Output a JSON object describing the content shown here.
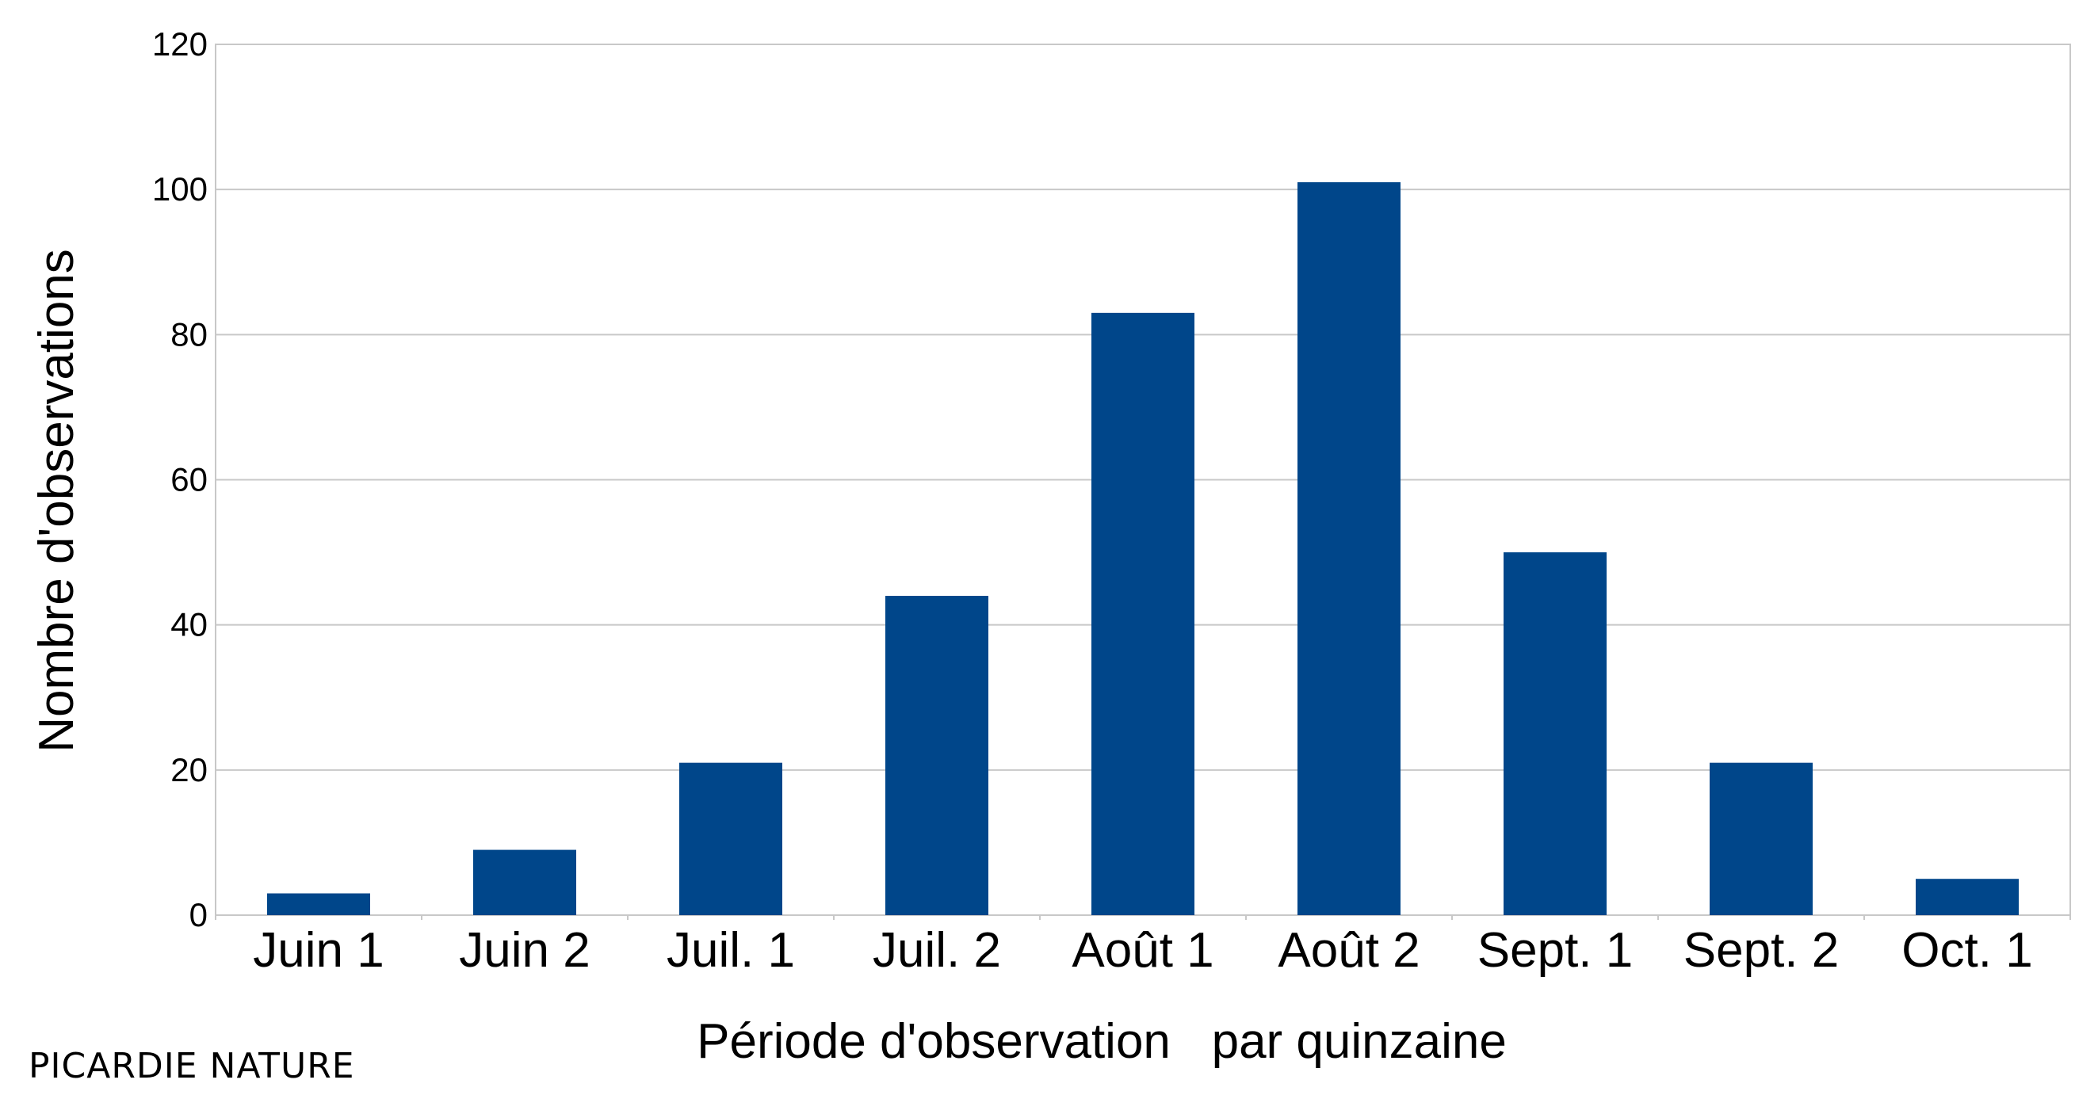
{
  "chart_data": {
    "type": "bar",
    "categories": [
      "Juin 1",
      "Juin 2",
      "Juil. 1",
      "Juil. 2",
      "Août 1",
      "Août 2",
      "Sept. 1",
      "Sept. 2",
      "Oct. 1"
    ],
    "values": [
      3,
      9,
      21,
      44,
      83,
      101,
      50,
      21,
      5
    ],
    "title": "",
    "xlabel": "Période d'observation   par quinzaine",
    "ylabel": "Nombre d'observations",
    "ylim": [
      0,
      120
    ],
    "yticks": [
      0,
      20,
      40,
      60,
      80,
      100,
      120
    ],
    "grid": true,
    "bar_color": "#00468a",
    "grid_color": "#c8c8c8"
  },
  "watermark": "PICARDIE NATURE"
}
